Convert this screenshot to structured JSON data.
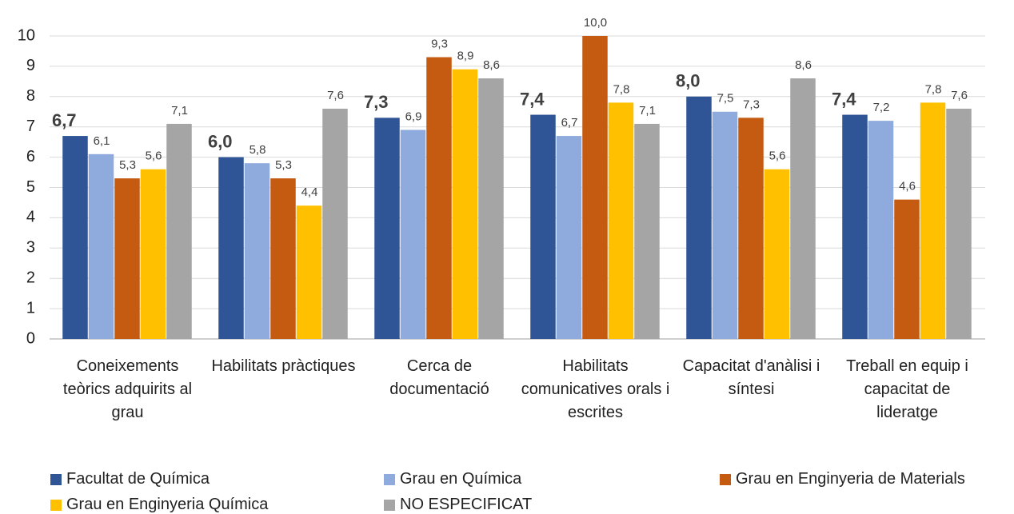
{
  "chart_data": {
    "type": "bar",
    "categories": [
      "Coneixements teòrics adquirits al grau",
      "Habilitats pràctiques",
      "Cerca de documentació",
      "Habilitats comunicatives orals i escrites",
      "Capacitat d'anàlisi i síntesi",
      "Treball en equip i capacitat de lideratge"
    ],
    "series": [
      {
        "name": "Facultat de Química",
        "color": "#2f5597",
        "values": [
          6.7,
          6.0,
          7.3,
          7.4,
          8.0,
          7.4
        ],
        "value_labels": [
          "6,7",
          "6,0",
          "7,3",
          "7,4",
          "8,0",
          "7,4"
        ]
      },
      {
        "name": "Grau en Química",
        "color": "#8faadc",
        "values": [
          6.1,
          5.8,
          6.9,
          6.7,
          7.5,
          7.2
        ],
        "value_labels": [
          "6,1",
          "5,8",
          "6,9",
          "6,7",
          "7,5",
          "7,2"
        ]
      },
      {
        "name": "Grau en Enginyeria de Materials",
        "color": "#c55a11",
        "values": [
          5.3,
          5.3,
          9.3,
          10.0,
          7.3,
          4.6
        ],
        "value_labels": [
          "5,3",
          "5,3",
          "9,3",
          "10,0",
          "7,3",
          "4,6"
        ]
      },
      {
        "name": "Grau en Enginyeria Química",
        "color": "#ffc000",
        "values": [
          5.6,
          4.4,
          8.9,
          7.8,
          5.6,
          7.8
        ],
        "value_labels": [
          "5,6",
          "4,4",
          "8,9",
          "7,8",
          "5,6",
          "7,8"
        ]
      },
      {
        "name": "NO ESPECIFICAT",
        "color": "#a5a5a5",
        "values": [
          7.1,
          7.6,
          8.6,
          7.1,
          8.6,
          7.6
        ],
        "value_labels": [
          "7,1",
          "7,6",
          "8,6",
          "7,1",
          "8,6",
          "7,6"
        ]
      }
    ],
    "ylim": [
      0,
      10
    ],
    "yticks": [
      0,
      1,
      2,
      3,
      4,
      5,
      6,
      7,
      8,
      9,
      10
    ],
    "grid": true,
    "legend": "bottom"
  }
}
